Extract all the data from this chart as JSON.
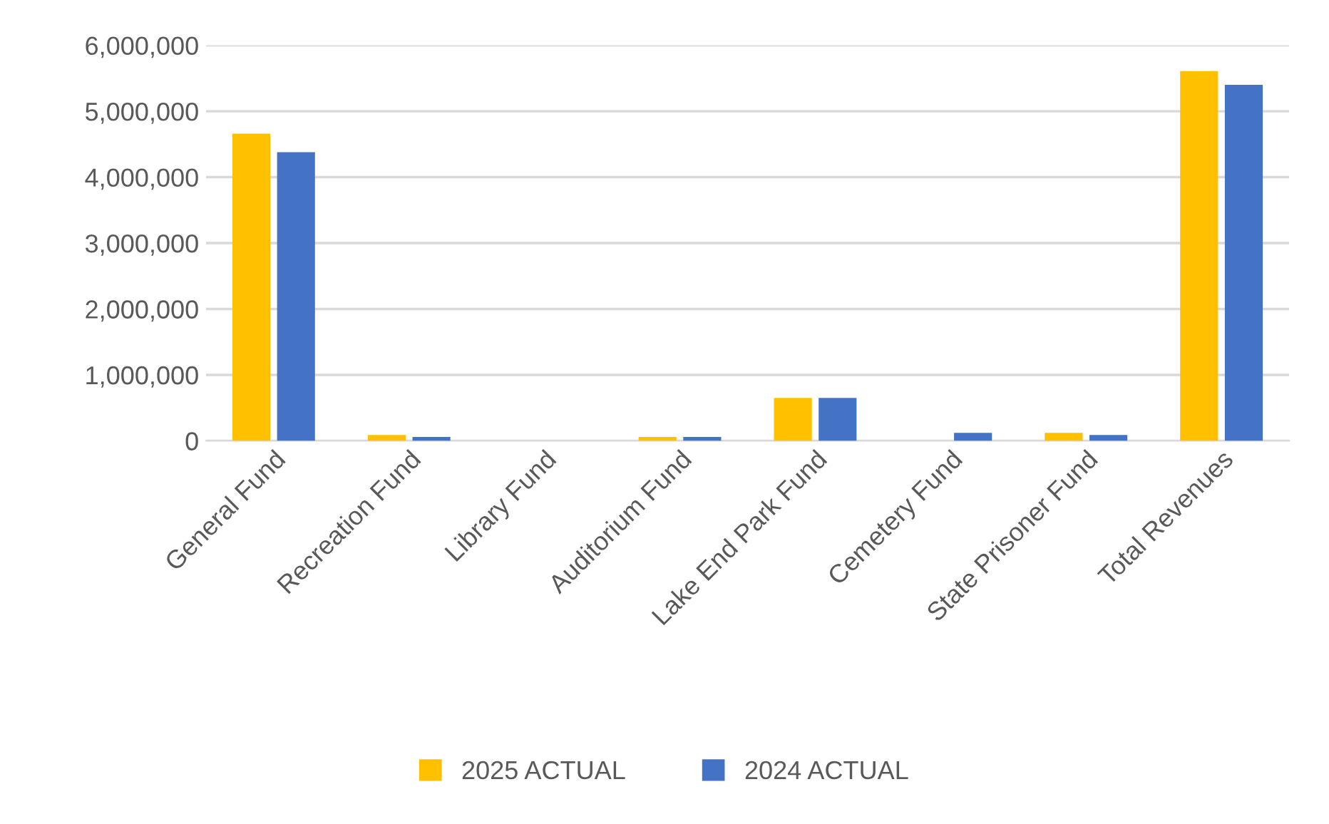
{
  "chart_data": {
    "type": "bar",
    "categories": [
      "General Fund",
      "Recreation Fund",
      "Library Fund",
      "Auditorium Fund",
      "Lake End Park Fund",
      "Cemetery Fund",
      "State Prisoner Fund",
      "Total Revenues"
    ],
    "series": [
      {
        "name": "2025 ACTUAL",
        "color": "#ffc000",
        "values": [
          4660000,
          90000,
          0,
          60000,
          650000,
          0,
          120000,
          5610000
        ]
      },
      {
        "name": "2024 ACTUAL",
        "color": "#4472c4",
        "values": [
          4380000,
          60000,
          0,
          60000,
          650000,
          120000,
          90000,
          5400000
        ]
      }
    ],
    "ylim": [
      0,
      6000000
    ],
    "yticks": [
      {
        "value": 0,
        "label": "0"
      },
      {
        "value": 1000000,
        "label": "1,000,000"
      },
      {
        "value": 2000000,
        "label": "2,000,000"
      },
      {
        "value": 3000000,
        "label": "3,000,000"
      },
      {
        "value": 4000000,
        "label": "4,000,000"
      },
      {
        "value": 5000000,
        "label": "5,000,000"
      },
      {
        "value": 6000000,
        "label": "6,000,000"
      }
    ],
    "grid": "y",
    "legend": "bottom"
  }
}
